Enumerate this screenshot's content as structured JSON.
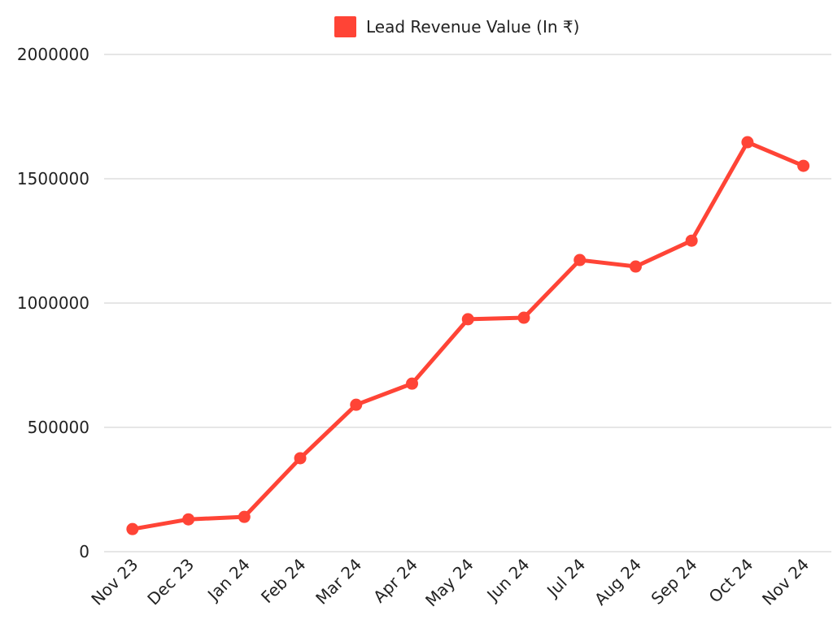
{
  "chart_data": {
    "type": "line",
    "title": "",
    "xlabel": "",
    "ylabel": "",
    "legend": {
      "position": "top-center",
      "entries": [
        "Lead Revenue Value (In ₹)"
      ]
    },
    "categories": [
      "Nov 23",
      "Dec 23",
      "Jan 24",
      "Feb 24",
      "Mar 24",
      "Apr 24",
      "May 24",
      "Jun 24",
      "Jul 24",
      "Aug 24",
      "Sep 24",
      "Oct 24",
      "Nov 24"
    ],
    "series": [
      {
        "name": "Lead Revenue Value (In ₹)",
        "color": "#ff4436",
        "values": [
          91000,
          130000,
          140000,
          376000,
          591000,
          676000,
          935000,
          941000,
          1173000,
          1147000,
          1251000,
          1647000,
          1552000
        ]
      }
    ],
    "ylim": [
      0,
      2000000
    ],
    "yticks": [
      0,
      500000,
      1000000,
      1500000,
      2000000
    ],
    "ytick_labels": [
      "0",
      "500000",
      "1000000",
      "1500000",
      "2000000"
    ],
    "grid": true,
    "grid_color": "#cccccc"
  }
}
